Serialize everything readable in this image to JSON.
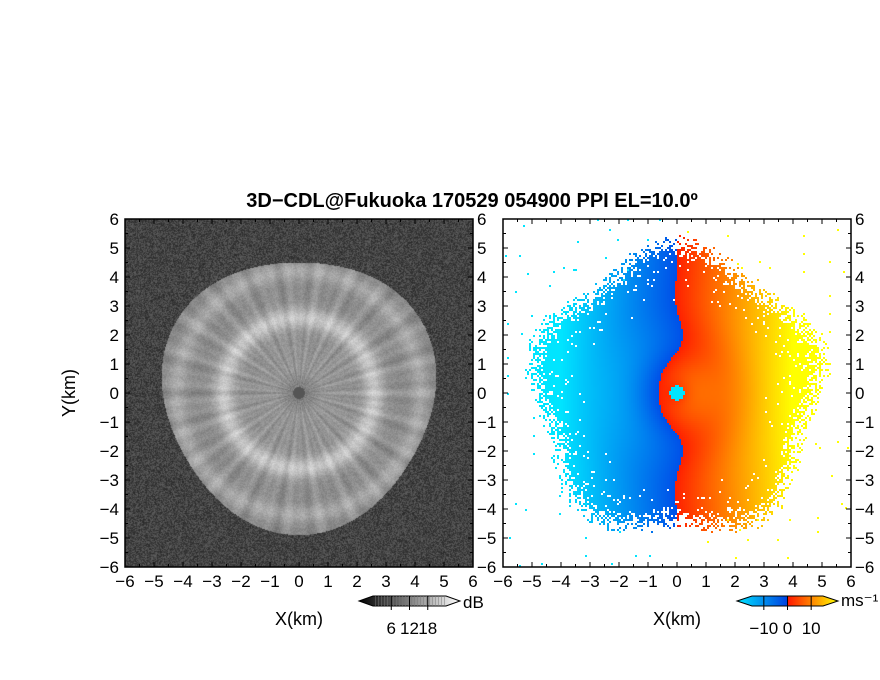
{
  "figure": {
    "title": "3D−CDL@Fukuoka 170529 054900 PPI EL=10.0º"
  },
  "chart_data": [
    {
      "type": "heatmap",
      "name": "intensity-panel",
      "xlabel": "X(km)",
      "ylabel": "Y(km)",
      "xlim": [
        -6,
        6
      ],
      "ylim": [
        -6,
        6
      ],
      "ticks": [
        "−6",
        "−5",
        "−4",
        "−3",
        "−2",
        "−1",
        "0",
        "1",
        "2",
        "3",
        "4",
        "5",
        "6"
      ],
      "grid": false,
      "colormap": "grayscale",
      "colorbar": {
        "unit": "dB",
        "ticks": [
          "6",
          "12",
          "18"
        ],
        "range": [
          0,
          24
        ]
      },
      "features": {
        "echo_radius_km": 4.7,
        "bright_ring_radius_km": 2.6,
        "center_marker_radius_km": 0.2
      }
    },
    {
      "type": "heatmap",
      "name": "velocity-panel",
      "xlabel": "X(km)",
      "xlim": [
        -6,
        6
      ],
      "ylim": [
        -6,
        6
      ],
      "ticks": [
        "−6",
        "−5",
        "−4",
        "−3",
        "−2",
        "−1",
        "0",
        "1",
        "2",
        "3",
        "4",
        "5",
        "6"
      ],
      "grid": false,
      "colormap": "cyan-blue-red-yellow",
      "colors": [
        "#00e5ff",
        "#0050e8",
        "#ff2000",
        "#ffff00"
      ],
      "colorbar": {
        "unit": "ms⁻¹",
        "ticks": [
          "−10",
          "0",
          "10"
        ],
        "range": [
          -15,
          15
        ]
      },
      "features": {
        "echo_radius_km": 4.7,
        "approaching_side": "west (negative, blue)",
        "receding_side": "east (positive, red-yellow)"
      }
    }
  ]
}
